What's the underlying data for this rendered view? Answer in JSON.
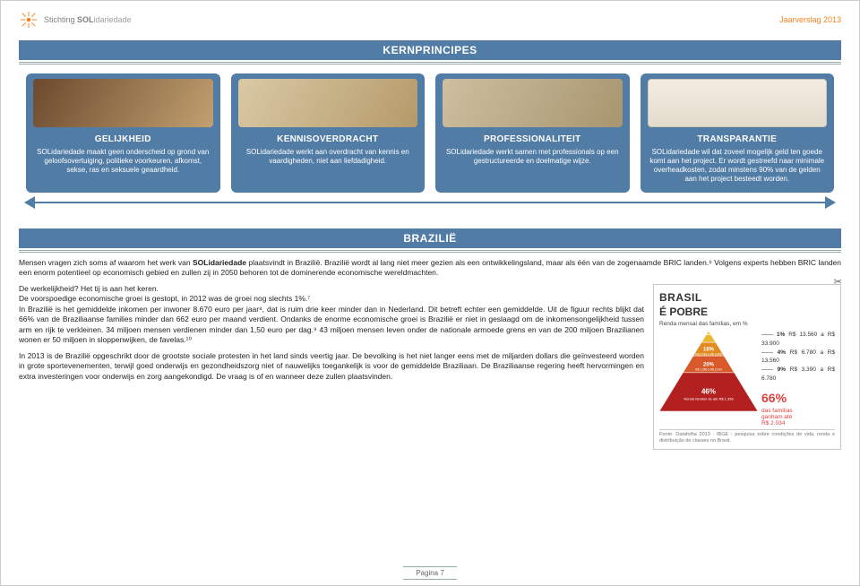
{
  "header": {
    "org_prefix": "Stichting ",
    "org_bold": "SOL",
    "org_rest": "idariedade",
    "year_label": "Jaarverslag 2013"
  },
  "section1": {
    "title": "KERNPRINCIPES",
    "cards": [
      {
        "title": "GELIJKHEID",
        "body": "SOLidariedade maakt geen onderscheid op grond van geloofsovertuiging, politieke voorkeuren, afkomst, sekse, ras en seksuele geaardheid."
      },
      {
        "title": "KENNISOVERDRACHT",
        "body": "SOLidariedade werkt aan overdracht van kennis en vaardigheden, niet aan liefdadigheid."
      },
      {
        "title": "PROFESSIONALITEIT",
        "body": "SOLidariedade werkt samen met professionals op een gestructureerde en doelmatige wijze."
      },
      {
        "title": "TRANSPARANTIE",
        "body": "SOLidariedade wil dat zoveel mogelijk geld ten goede komt aan het project. Er wordt gestreefd naar minimale overheadkosten, zodat minstens 90% van de gelden aan het project besteedt worden."
      }
    ]
  },
  "section2": {
    "title": "BRAZILIË",
    "paragraphs": [
      "Mensen vragen zich soms af waarom het werk van SOLidariedade plaatsvindt in Brazilië. Brazilië wordt al lang niet meer gezien als een ontwikkelingsland, maar als één van de zogenaamde BRIC landen.⁶ Volgens experts hebben BRIC landen een enorm potentieel op economisch gebied en zullen zij in 2050 behoren tot de dominerende economische wereldmachten.",
      "De werkelijkheid? Het tij is aan het keren.\nDe voorspoedige economische groei is gestopt, in 2012 was de groei nog slechts 1%.⁷\nIn Brazilië is het gemiddelde inkomen per inwoner 8.670 euro per jaar⁸, dat is ruim drie keer minder dan in Nederland. Dit betreft echter een gemiddelde. Uit de figuur rechts blijkt dat 66% van de Braziliaanse families minder dan 662 euro per maand verdient. Ondanks de enorme economische groei is Brazilië er niet in geslaagd om de inkomensongelijkheid tussen arm en rijk te verkleinen. 34 miljoen mensen verdienen minder dan 1,50 euro per dag.⁹ 43 miljoen mensen leven onder de nationale armoede grens en van de 200 miljoen Brazilianen wonen er 50 miljoen in sloppenwijken, de favelas.¹⁰",
      "In 2013 is de Brazilië opgeschrikt door de grootste sociale protesten in het land sinds veertig jaar. De bevolking is het niet langer eens met de miljarden dollars die geïnvesteerd worden in grote sportevenementen, terwijl goed onderwijs en gezondheidszorg niet of nauwelijks toegankelijk is voor de gemiddelde Braziliaan. De Braziliaanse regering heeft hervormingen en extra investeringen voor onderwijs en zorg aangekondigd. De vraag is of en wanneer deze zullen plaatsvinden."
    ]
  },
  "pyramid": {
    "title": "BRASIL",
    "subtitle": "É POBRE",
    "desc": "Renda mensal das famílias, em %",
    "bands": [
      {
        "pct": "1%",
        "range": "R$ 13.560 a R$ 33.900",
        "color": "#444444"
      },
      {
        "pct": "4%",
        "range": "R$ 6.780 a R$ 13.560",
        "color": "#f2cf4a"
      },
      {
        "pct": "9%",
        "range": "R$ 3.390 a R$ 6.780",
        "color": "#e9b933"
      },
      {
        "pct": "16%",
        "range": "R$ 2.034 a R$ 3.390",
        "color": "#e08a20"
      },
      {
        "pct": "20%",
        "range": "R$ 1.356 a R$ 2.034",
        "color": "#d85a2a"
      },
      {
        "pct": "46%",
        "range": "Renda familiar de até R$ 1.356",
        "color": "#b22020"
      }
    ],
    "callout_pct": "66%",
    "callout_line1": "das famílias",
    "callout_line2": "ganham até",
    "callout_line3": "R$ 2.034",
    "footnote": "Fonte: Datafolha 2013 · IBGE · pesquisa sobre condições de vida, renda e distribuição de classes no Brasil."
  },
  "footer": {
    "page_label": "Pagina 7"
  }
}
